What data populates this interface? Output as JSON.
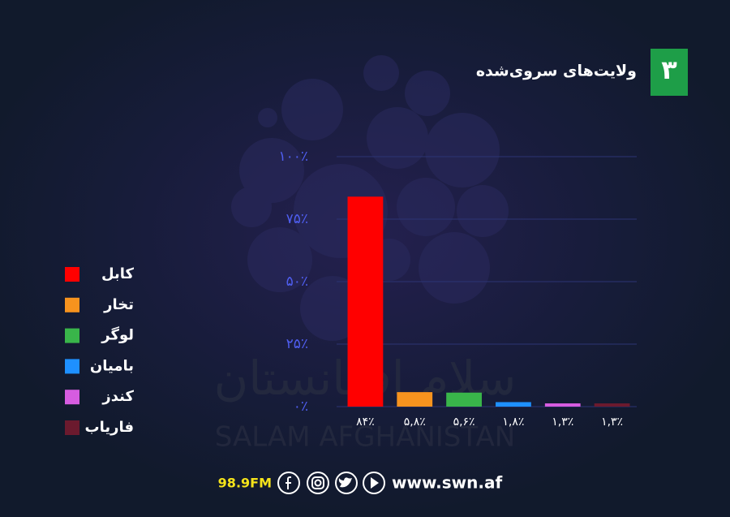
{
  "title": "ولایت‌های سروی‌شده",
  "badge": "۳",
  "watermark": [
    "سلام افغانستان",
    "SALAM AFGHANISTAN"
  ],
  "footer": {
    "radio": "98.9FM",
    "website": "www.swn.af"
  },
  "chart_data": {
    "type": "bar",
    "categories": [
      "کابل",
      "تخار",
      "لوگر",
      "بامیان",
      "کندز",
      "فاریاب"
    ],
    "values": [
      84,
      5.8,
      5.6,
      1.8,
      1.3,
      1.3
    ],
    "value_labels": [
      "۸۴٪",
      "۵,۸٪",
      "۵,۶٪",
      "۱,۸٪",
      "۱,۳٪",
      "۱,۳٪"
    ],
    "colors": [
      "#ff0000",
      "#f7931e",
      "#39b54a",
      "#1e90ff",
      "#d65ce0",
      "#6b1a2e"
    ],
    "ylim": [
      0,
      100
    ],
    "yticks": [
      {
        "value": 0,
        "label": "۰٪"
      },
      {
        "value": 25,
        "label": "۲۵٪"
      },
      {
        "value": 50,
        "label": "۵۰٪"
      },
      {
        "value": 75,
        "label": "۷۵٪"
      },
      {
        "value": 100,
        "label": "۱۰۰٪"
      }
    ],
    "grid": true,
    "legend": "left"
  }
}
